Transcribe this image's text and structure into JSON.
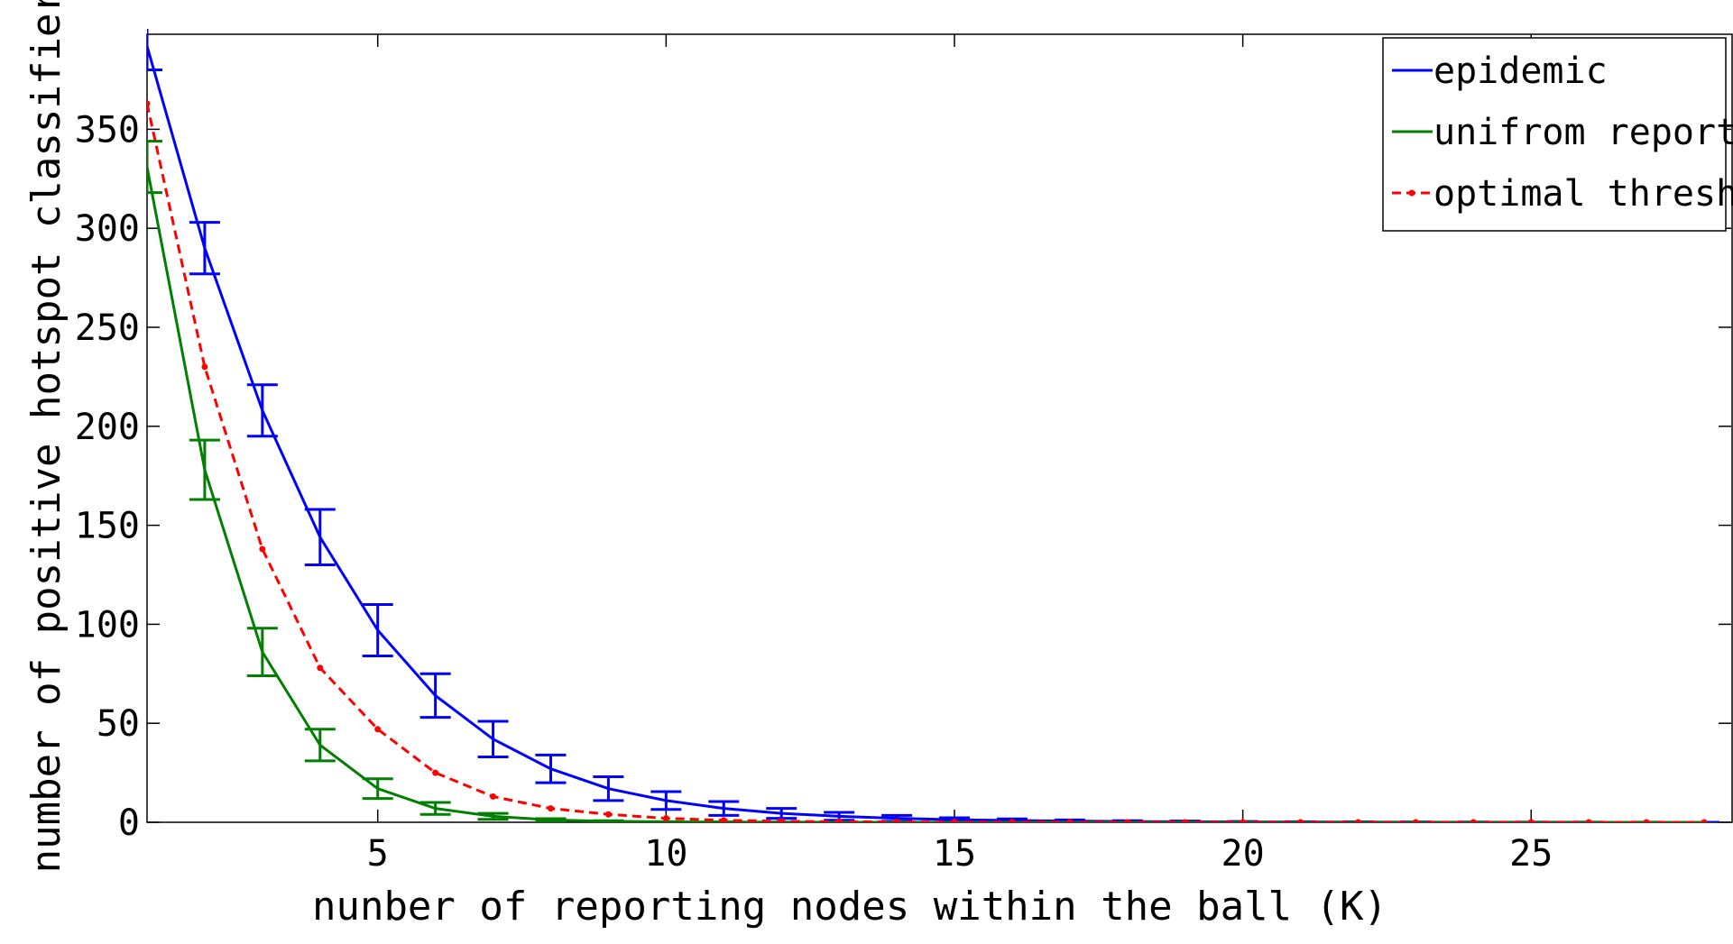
{
  "chart_data": {
    "type": "line",
    "title": "",
    "xlabel": "nunber of reporting nodes within the ball (K)",
    "ylabel": "number of positive hotspot classifiers",
    "xlim": [
      1,
      28.5
    ],
    "ylim": [
      0,
      398
    ],
    "xticks": [
      5,
      10,
      15,
      20,
      25
    ],
    "yticks": [
      0,
      50,
      100,
      150,
      200,
      250,
      300,
      350
    ],
    "grid": false,
    "legend_position": "top-right",
    "x": [
      1,
      2,
      3,
      4,
      5,
      6,
      7,
      8,
      9,
      10,
      11,
      12,
      13,
      14,
      15,
      16,
      17,
      18,
      19,
      20,
      21,
      22,
      23,
      24,
      25,
      26,
      27,
      28
    ],
    "series": [
      {
        "name": "epidemic",
        "color": "#0000ff",
        "style": "solid",
        "values": [
          392,
          290,
          208,
          144,
          97,
          64,
          42,
          27,
          17,
          11,
          7,
          4.5,
          3,
          2,
          1.3,
          0.9,
          0.6,
          0.4,
          0.3,
          0.2,
          0.15,
          0.1,
          0.08,
          0.05,
          0.04,
          0.03,
          0.02,
          0.01
        ],
        "error": [
          12,
          13,
          13,
          14,
          13,
          11,
          9,
          7,
          6,
          4.5,
          3.5,
          2.5,
          2,
          1.5,
          1,
          0.8,
          0.6,
          0.4,
          0.3,
          0.2,
          0.15,
          0.1,
          0.08,
          0.05,
          0.04,
          0.03,
          0.02,
          0.01
        ]
      },
      {
        "name": "unifrom reporting",
        "color": "#007f00",
        "style": "solid",
        "values": [
          331,
          178,
          86,
          39,
          17,
          7,
          3,
          1.2,
          0.5,
          0.2,
          0.1,
          0.05,
          0.02,
          0.01,
          0,
          0,
          0,
          0,
          0,
          0,
          0,
          0,
          0,
          0,
          0,
          0,
          0,
          0
        ],
        "error": [
          13,
          15,
          12,
          8,
          5,
          3,
          1.5,
          0.6,
          0.3,
          0.1,
          0.05,
          0.03,
          0.01,
          0.01,
          0,
          0,
          0,
          0,
          0,
          0,
          0,
          0,
          0,
          0,
          0,
          0,
          0,
          0
        ]
      },
      {
        "name": "optimal threshold",
        "color": "#ff0000",
        "style": "dashed",
        "values": [
          363,
          230,
          138,
          78,
          47,
          25,
          13,
          7,
          4,
          2,
          1,
          0.5,
          0.3,
          0.2,
          0.1,
          0.05,
          0.03,
          0.02,
          0.01,
          0,
          0,
          0,
          0,
          0,
          0,
          0,
          0,
          0
        ]
      }
    ]
  }
}
